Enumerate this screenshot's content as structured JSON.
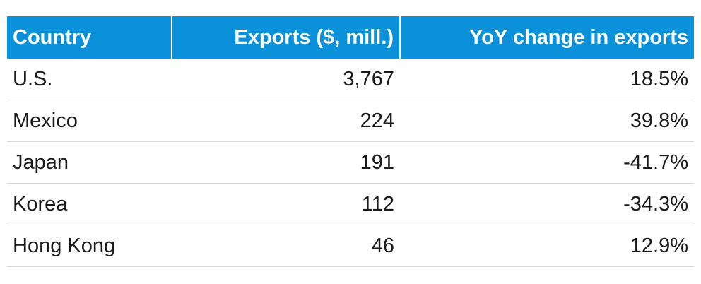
{
  "chart_data": {
    "type": "table",
    "columns": [
      "Country",
      "Exports ($, mill.)",
      "YoY change in exports"
    ],
    "rows": [
      {
        "country": "U.S.",
        "exports": "3,767",
        "yoy": "18.5%"
      },
      {
        "country": "Mexico",
        "exports": "224",
        "yoy": "39.8%"
      },
      {
        "country": "Japan",
        "exports": "191",
        "yoy": "-41.7%"
      },
      {
        "country": "Korea",
        "exports": "112",
        "yoy": "-34.3%"
      },
      {
        "country": "Hong Kong",
        "exports": "46",
        "yoy": "12.9%"
      }
    ],
    "values": {
      "exports_million_usd": [
        3767,
        224,
        191,
        112,
        46
      ],
      "yoy_change_percent": [
        18.5,
        39.8,
        -41.7,
        -34.3,
        12.9
      ]
    }
  },
  "colors": {
    "header_background": "#0a91d9",
    "header_text": "#ffffff",
    "row_divider": "#d9d9d9"
  }
}
